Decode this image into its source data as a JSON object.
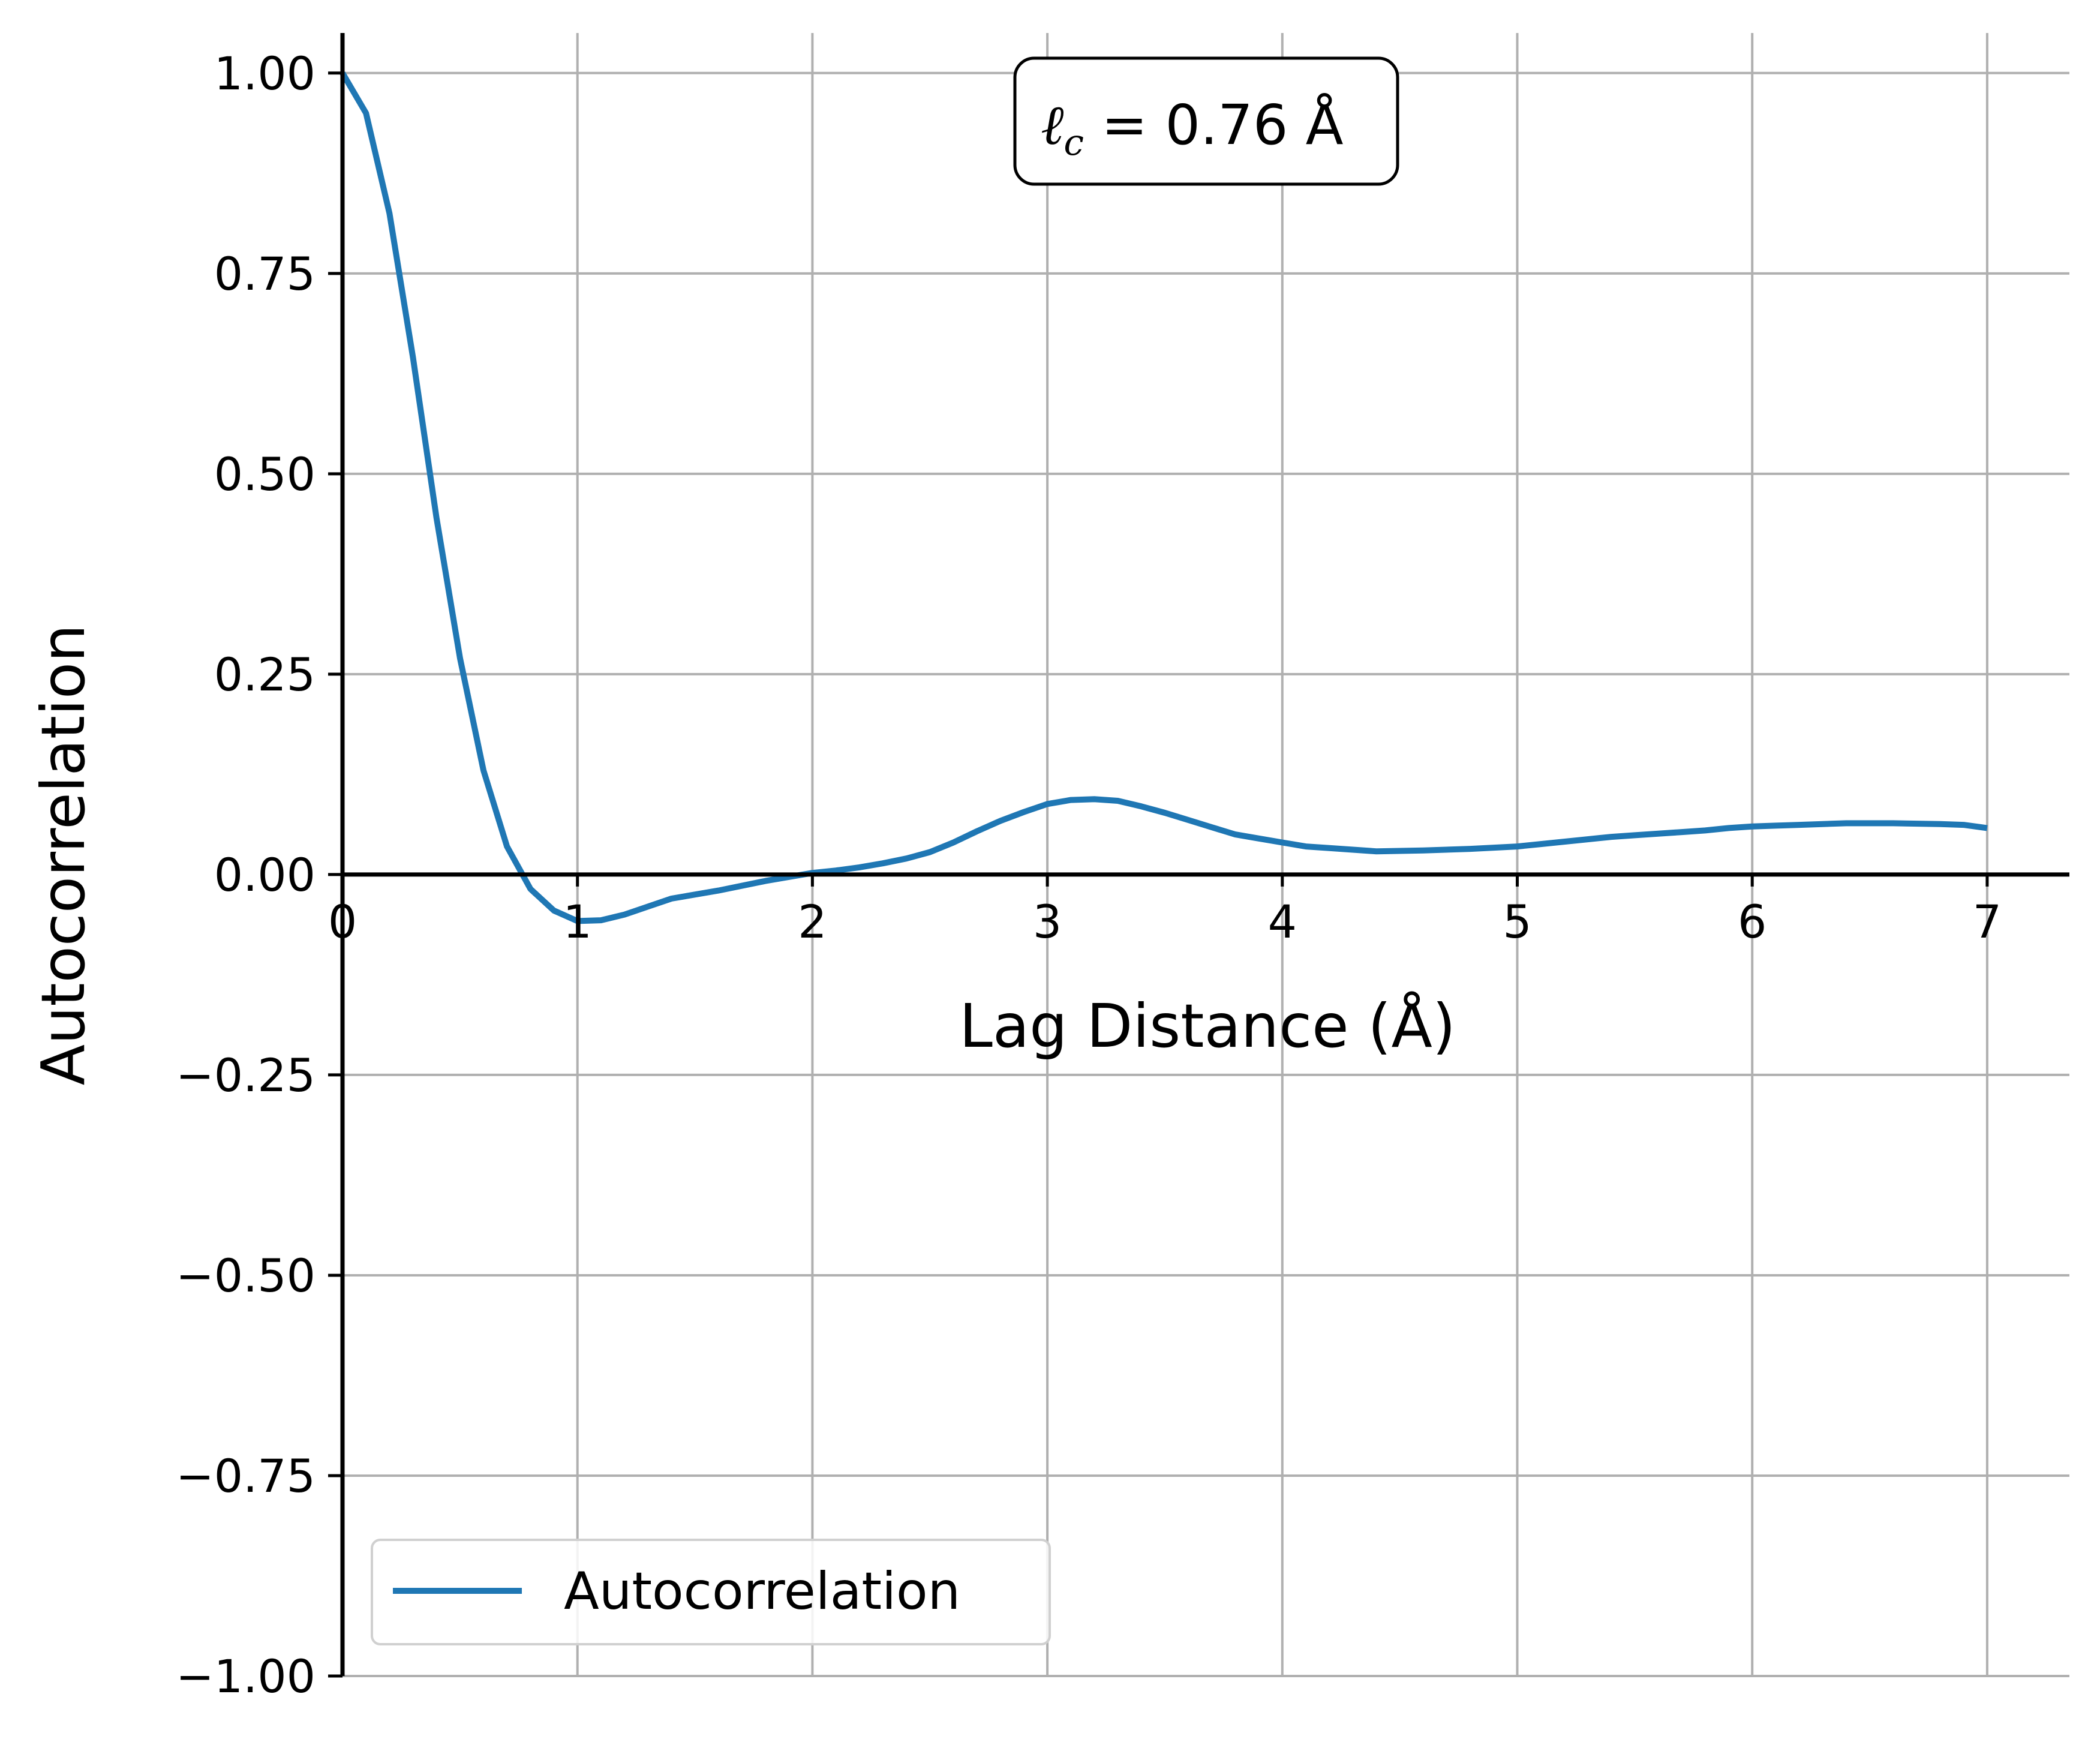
{
  "chart_data": {
    "type": "line",
    "xlabel": "Lag Distance (Å)",
    "ylabel": "Autocorrelation",
    "xlim": [
      0,
      7.35
    ],
    "ylim": [
      -1.0,
      1.05
    ],
    "xticks": [
      0,
      1,
      2,
      3,
      4,
      5,
      6,
      7
    ],
    "xtick_labels": [
      "0",
      "1",
      "2",
      "3",
      "4",
      "5",
      "6",
      "7"
    ],
    "yticks": [
      -1.0,
      -0.75,
      -0.5,
      -0.25,
      0.0,
      0.25,
      0.5,
      0.75,
      1.0
    ],
    "ytick_labels": [
      "−1.00",
      "−0.75",
      "−0.50",
      "−0.25",
      "0.00",
      "0.25",
      "0.50",
      "0.75",
      "1.00"
    ],
    "grid": true,
    "legend_position": "lower-left",
    "annotation": {
      "symbol": "ℓ",
      "subscript": "c",
      "text": " = 0.76 Å",
      "position": "top-center"
    },
    "series": [
      {
        "name": "Autocorrelation",
        "color": "#1f77b4",
        "x": [
          0,
          0.1,
          0.2,
          0.3,
          0.4,
          0.5,
          0.6,
          0.7,
          0.8,
          0.9,
          1.0,
          1.1,
          1.2,
          1.3,
          1.4,
          1.6,
          1.8,
          2.0,
          2.1,
          2.2,
          2.3,
          2.4,
          2.5,
          2.6,
          2.7,
          2.8,
          2.9,
          3.0,
          3.1,
          3.2,
          3.3,
          3.4,
          3.5,
          3.6,
          3.7,
          3.8,
          3.9,
          4.0,
          4.1,
          4.2,
          4.4,
          4.6,
          4.8,
          5.0,
          5.1,
          5.2,
          5.3,
          5.4,
          5.5,
          5.6,
          5.7,
          5.8,
          5.9,
          6.0,
          6.1,
          6.2,
          6.3,
          6.4,
          6.6,
          6.8,
          6.9,
          7.0
        ],
        "y": [
          1.0,
          0.95,
          0.825,
          0.645,
          0.445,
          0.27,
          0.13,
          0.035,
          -0.018,
          -0.045,
          -0.058,
          -0.057,
          -0.05,
          -0.04,
          -0.03,
          -0.02,
          -0.008,
          0.002,
          0.005,
          0.009,
          0.014,
          0.02,
          0.028,
          0.04,
          0.054,
          0.067,
          0.078,
          0.088,
          0.093,
          0.094,
          0.092,
          0.085,
          0.077,
          0.068,
          0.059,
          0.05,
          0.045,
          0.04,
          0.035,
          0.033,
          0.029,
          0.03,
          0.032,
          0.035,
          0.038,
          0.041,
          0.044,
          0.047,
          0.049,
          0.051,
          0.053,
          0.055,
          0.058,
          0.06,
          0.061,
          0.062,
          0.063,
          0.064,
          0.064,
          0.063,
          0.062,
          0.058
        ]
      }
    ]
  }
}
